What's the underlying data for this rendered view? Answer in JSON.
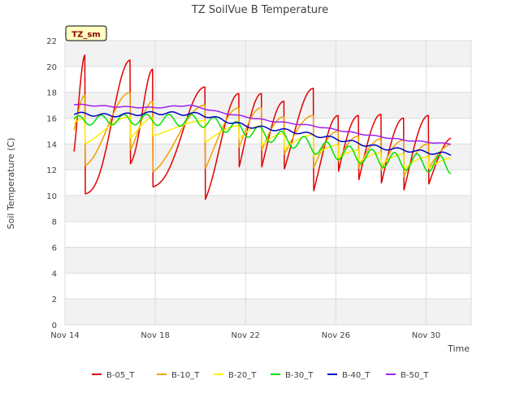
{
  "chart_data": {
    "type": "line",
    "title": "TZ SoilVue B Temperature",
    "xlabel": "Time",
    "ylabel": "Soil Temperature (C)",
    "badge": "TZ_sm",
    "ylim": [
      0,
      22
    ],
    "yticks": [
      0,
      2,
      4,
      6,
      8,
      10,
      12,
      14,
      16,
      18,
      20,
      22
    ],
    "xlim": [
      "2023-11-14",
      "2023-12-02"
    ],
    "xticks": [
      {
        "value": "2023-11-14",
        "label": "Nov 14"
      },
      {
        "value": "2023-11-18",
        "label": "Nov 18"
      },
      {
        "value": "2023-11-22",
        "label": "Nov 22"
      },
      {
        "value": "2023-11-26",
        "label": "Nov 26"
      },
      {
        "value": "2023-11-30",
        "label": "Nov 30"
      }
    ],
    "grid": true,
    "legend_position": "bottom",
    "series": [
      {
        "name": "B-05_T",
        "color": "#e00000"
      },
      {
        "name": "B-10_T",
        "color": "#f0a000"
      },
      {
        "name": "B-20_T",
        "color": "#ffee00"
      },
      {
        "name": "B-30_T",
        "color": "#00e000"
      },
      {
        "name": "B-40_T",
        "color": "#0000c0"
      },
      {
        "name": "B-50_T",
        "color": "#a020f0"
      }
    ]
  }
}
